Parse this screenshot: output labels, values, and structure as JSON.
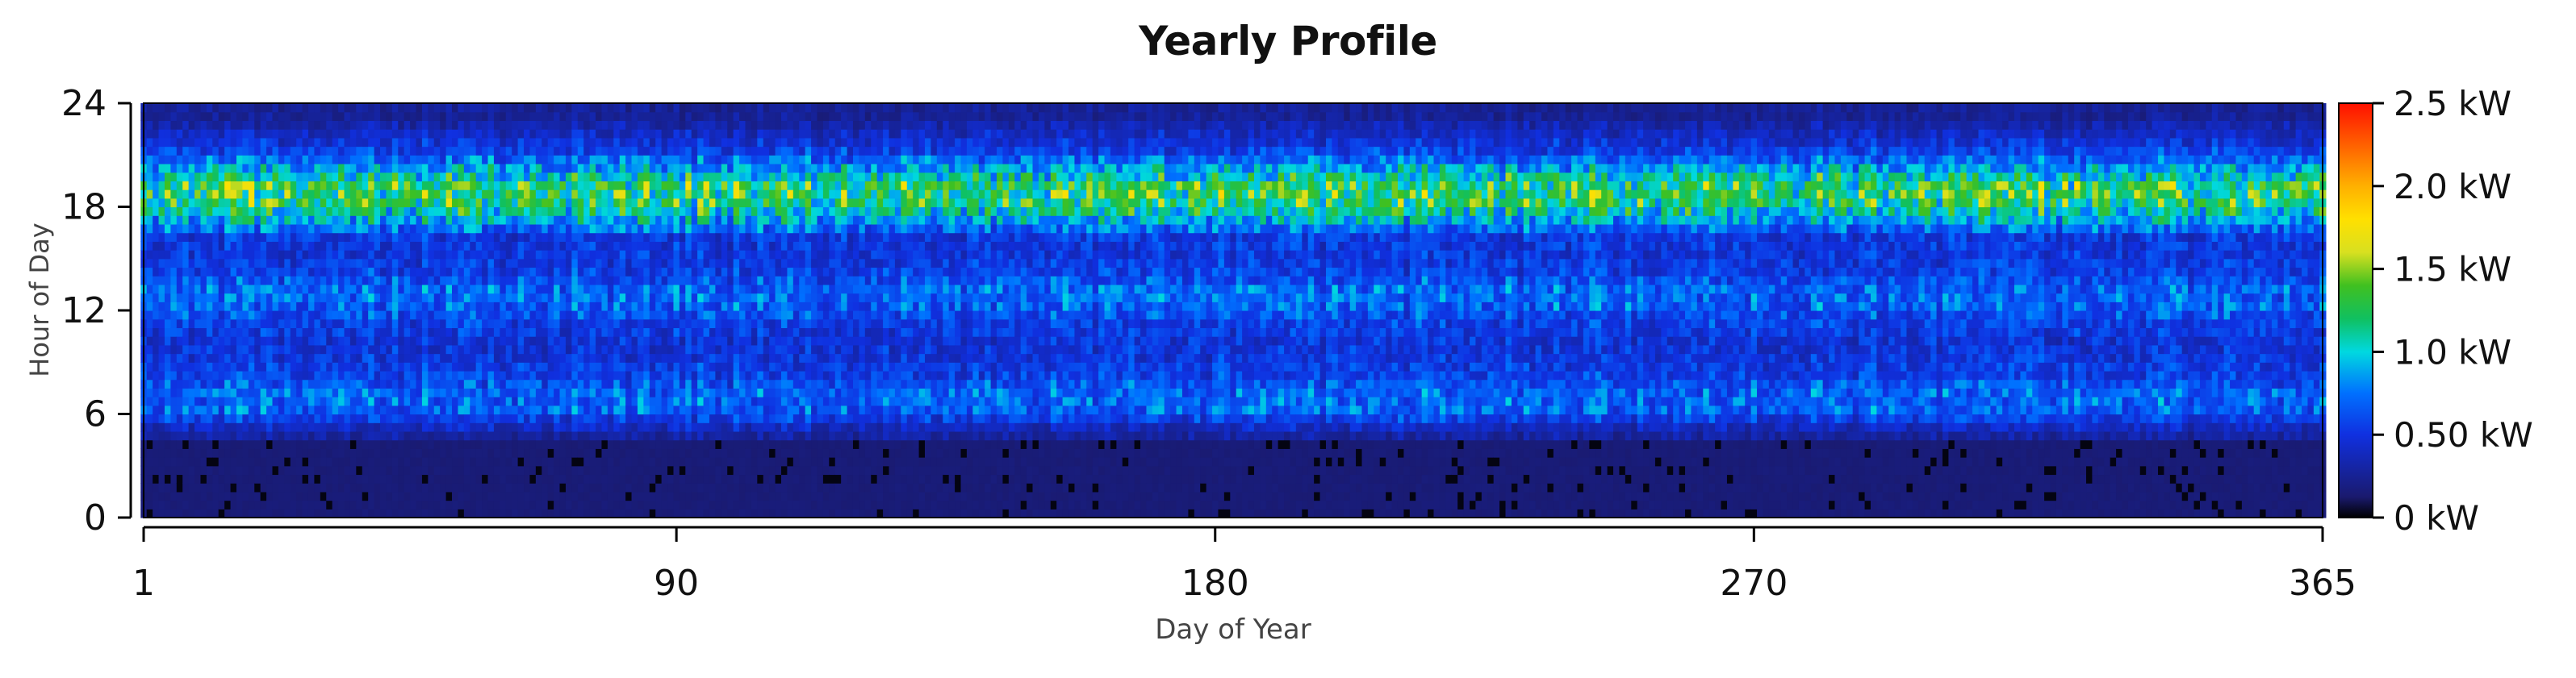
{
  "chart_data": {
    "type": "heatmap",
    "title": "Yearly Profile",
    "xlabel": "Day of Year",
    "ylabel": "Hour of Day",
    "xlim": [
      1,
      365
    ],
    "ylim": [
      0,
      24
    ],
    "x_ticks": [
      "1",
      "90",
      "180",
      "270",
      "365"
    ],
    "y_ticks": [
      "0",
      "6",
      "12",
      "18",
      "24"
    ],
    "colorbar": {
      "unit": "kW",
      "range": [
        0,
        2.5
      ],
      "tick_labels": [
        "0 kW",
        "0.50 kW",
        "1.0 kW",
        "1.5 kW",
        "2.0 kW",
        "2.5 kW"
      ],
      "tick_values": [
        0,
        0.5,
        1.0,
        1.5,
        2.0,
        2.5
      ]
    },
    "hourly_profile": {
      "description_hours": [
        0,
        1,
        2,
        3,
        4,
        5,
        6,
        7,
        8,
        9,
        10,
        11,
        12,
        13,
        14,
        15,
        16,
        17,
        18,
        19,
        20,
        21,
        22,
        23
      ],
      "mean_kw": [
        0.14,
        0.14,
        0.14,
        0.14,
        0.18,
        0.4,
        0.68,
        0.7,
        0.55,
        0.5,
        0.48,
        0.55,
        0.68,
        0.7,
        0.55,
        0.5,
        0.52,
        0.9,
        1.22,
        1.25,
        0.88,
        0.55,
        0.4,
        0.25
      ]
    },
    "grid": false,
    "legend": "colorbar-right"
  }
}
